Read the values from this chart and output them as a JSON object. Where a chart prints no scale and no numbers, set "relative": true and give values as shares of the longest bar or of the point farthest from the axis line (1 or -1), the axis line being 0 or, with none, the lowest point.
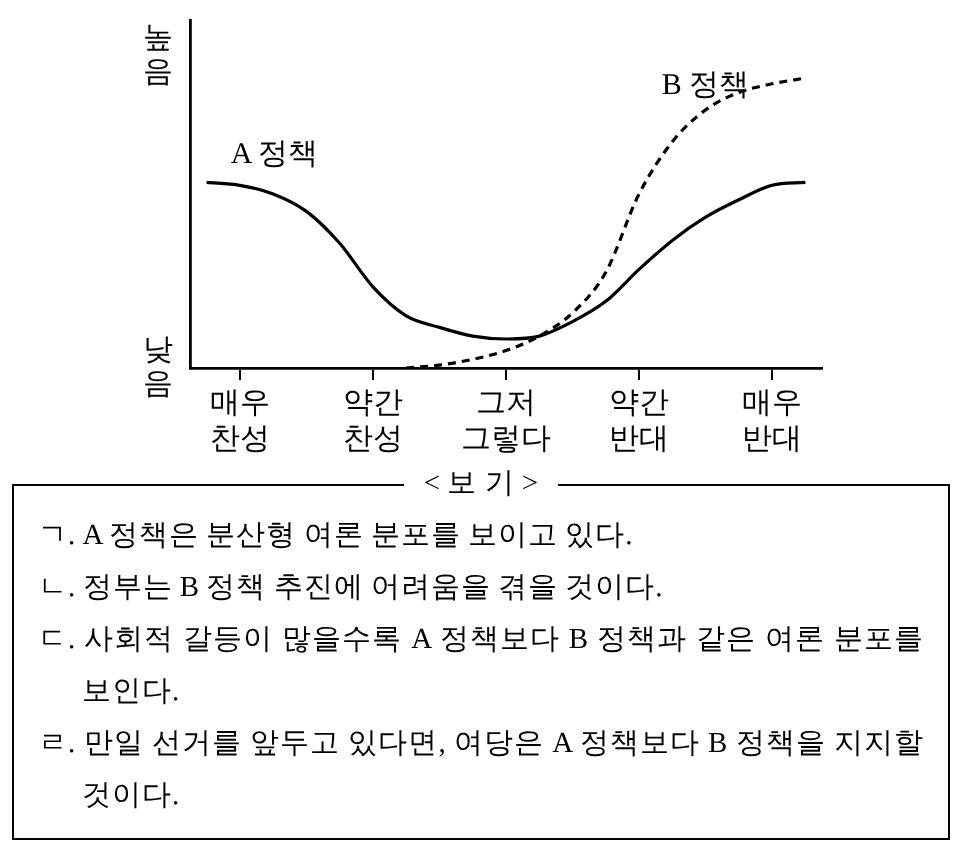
{
  "chart_data": {
    "type": "line",
    "relative": true,
    "categories": [
      null,
      "매우\n찬성",
      null,
      null,
      null,
      "약간\n찬성",
      null,
      null,
      null,
      "그저\n그렇다",
      null,
      null,
      null,
      "약간\n반대",
      null,
      null,
      null,
      "매우\n반대",
      null
    ],
    "grid": false,
    "legend": false,
    "marker": "none",
    "series": [
      {
        "name": "A 정책",
        "color": "#000000",
        "line_style": "solid",
        "values": [
          0.64,
          0.63,
          0.6,
          0.54,
          0.43,
          0.28,
          0.18,
          0.14,
          0.11,
          0.1,
          0.11,
          0.16,
          0.23,
          0.34,
          0.44,
          0.52,
          0.58,
          0.63,
          0.64
        ]
      },
      {
        "name": "B 정책",
        "color": "#000000",
        "line_style": "dashed",
        "values": [
          null,
          null,
          null,
          null,
          null,
          null,
          0.0,
          0.01,
          0.03,
          0.06,
          0.11,
          0.19,
          0.33,
          0.6,
          0.78,
          0.89,
          0.95,
          0.98,
          1.0
        ]
      }
    ],
    "annotations": [
      "높음",
      "낮음",
      "< 보 기 >",
      "ㄱ. A 정책은 분산형 여론 분포를 보이고 있다.",
      "ㄴ. 정부는 B 정책 추진에 어려움을 겪을 것이다.",
      "ㄷ. 사회적 갈등이 많을수록 A 정책보다 B 정책과 같은 여론 분포를 보인다.",
      "ㄹ. 만일 선거를 앞두고 있다면, 여당은 A 정책보다 B 정책을 지지할 것이다."
    ]
  }
}
